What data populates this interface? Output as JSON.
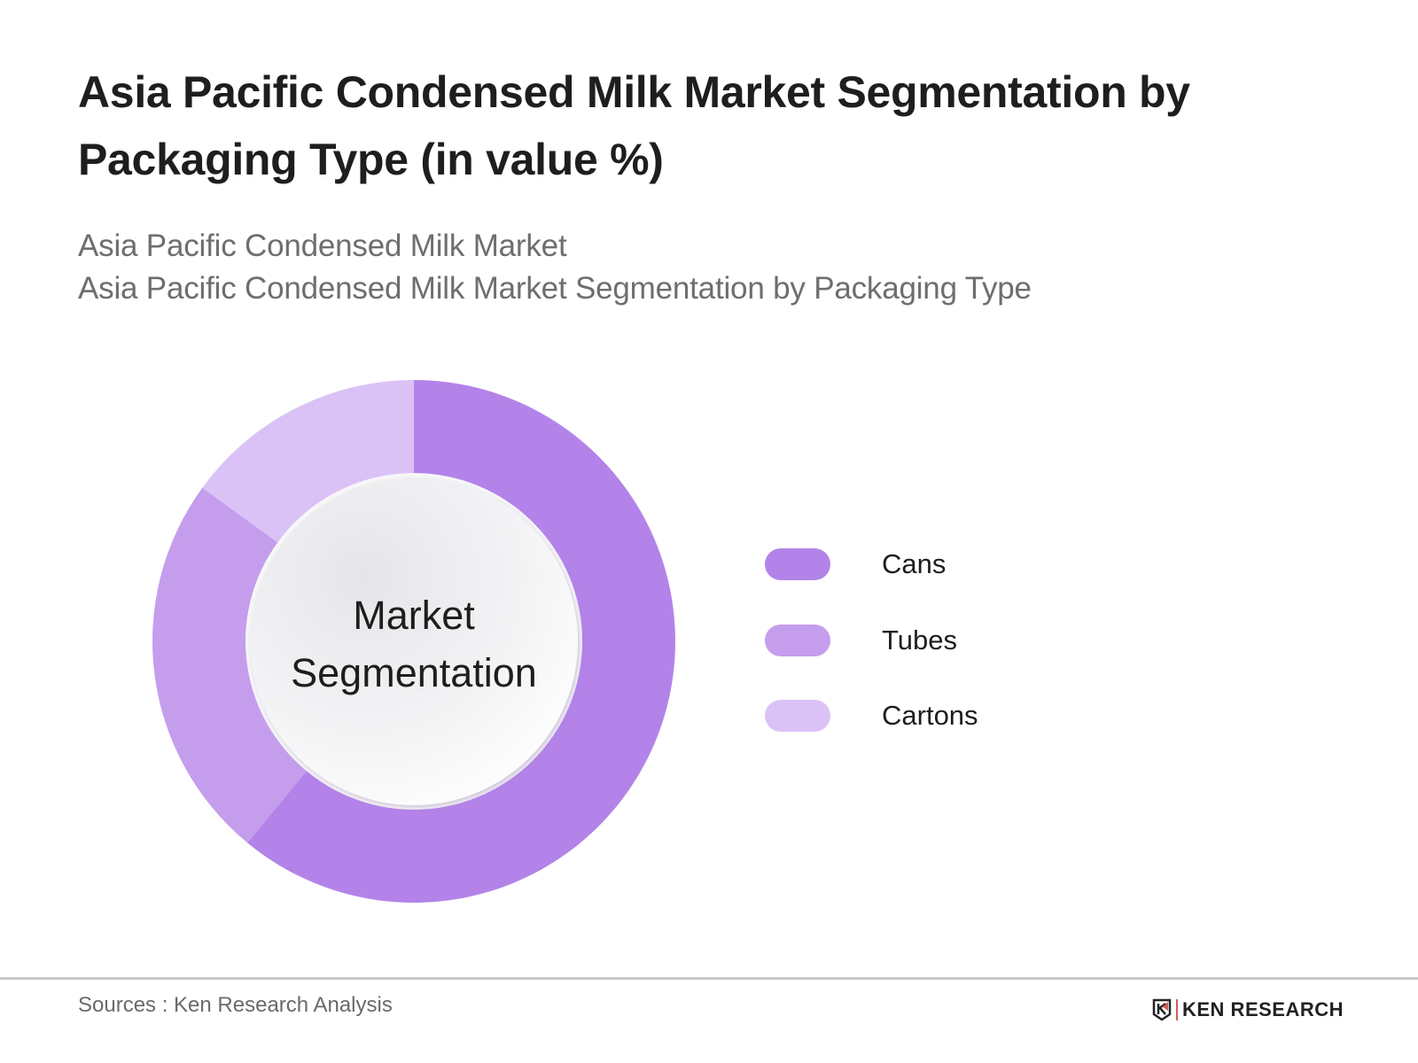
{
  "header": {
    "title": "Asia Pacific Condensed Milk Market Segmentation by Packaging Type (in value %)",
    "subtitle_1": "Asia Pacific Condensed Milk Market",
    "subtitle_2": "Asia Pacific Condensed Milk Market Segmentation by Packaging Type"
  },
  "chart": {
    "center_label_line1": "Market",
    "center_label_line2": "Segmentation"
  },
  "legend": [
    {
      "label": "Cans",
      "color": "#b383e9"
    },
    {
      "label": "Tubes",
      "color": "#c59ded"
    },
    {
      "label": "Cartons",
      "color": "#dbc2f6"
    }
  ],
  "footer": {
    "source": "Sources : Ken Research Analysis",
    "brand": "KEN RESEARCH"
  },
  "chart_data": {
    "type": "pie",
    "variant": "donut",
    "title": "Asia Pacific Condensed Milk Market Segmentation by Packaging Type (in value %)",
    "subtitle": "Asia Pacific Condensed Milk Market Segmentation by Packaging Type",
    "center_text": "Market Segmentation",
    "categories": [
      "Cans",
      "Tubes",
      "Cartons"
    ],
    "values": [
      61,
      24,
      15
    ],
    "unit": "%",
    "colors": [
      "#b383e9",
      "#c59ded",
      "#dbc2f6"
    ],
    "legend_position": "right",
    "start_angle": "top, clockwise",
    "data_labels_shown": false
  }
}
